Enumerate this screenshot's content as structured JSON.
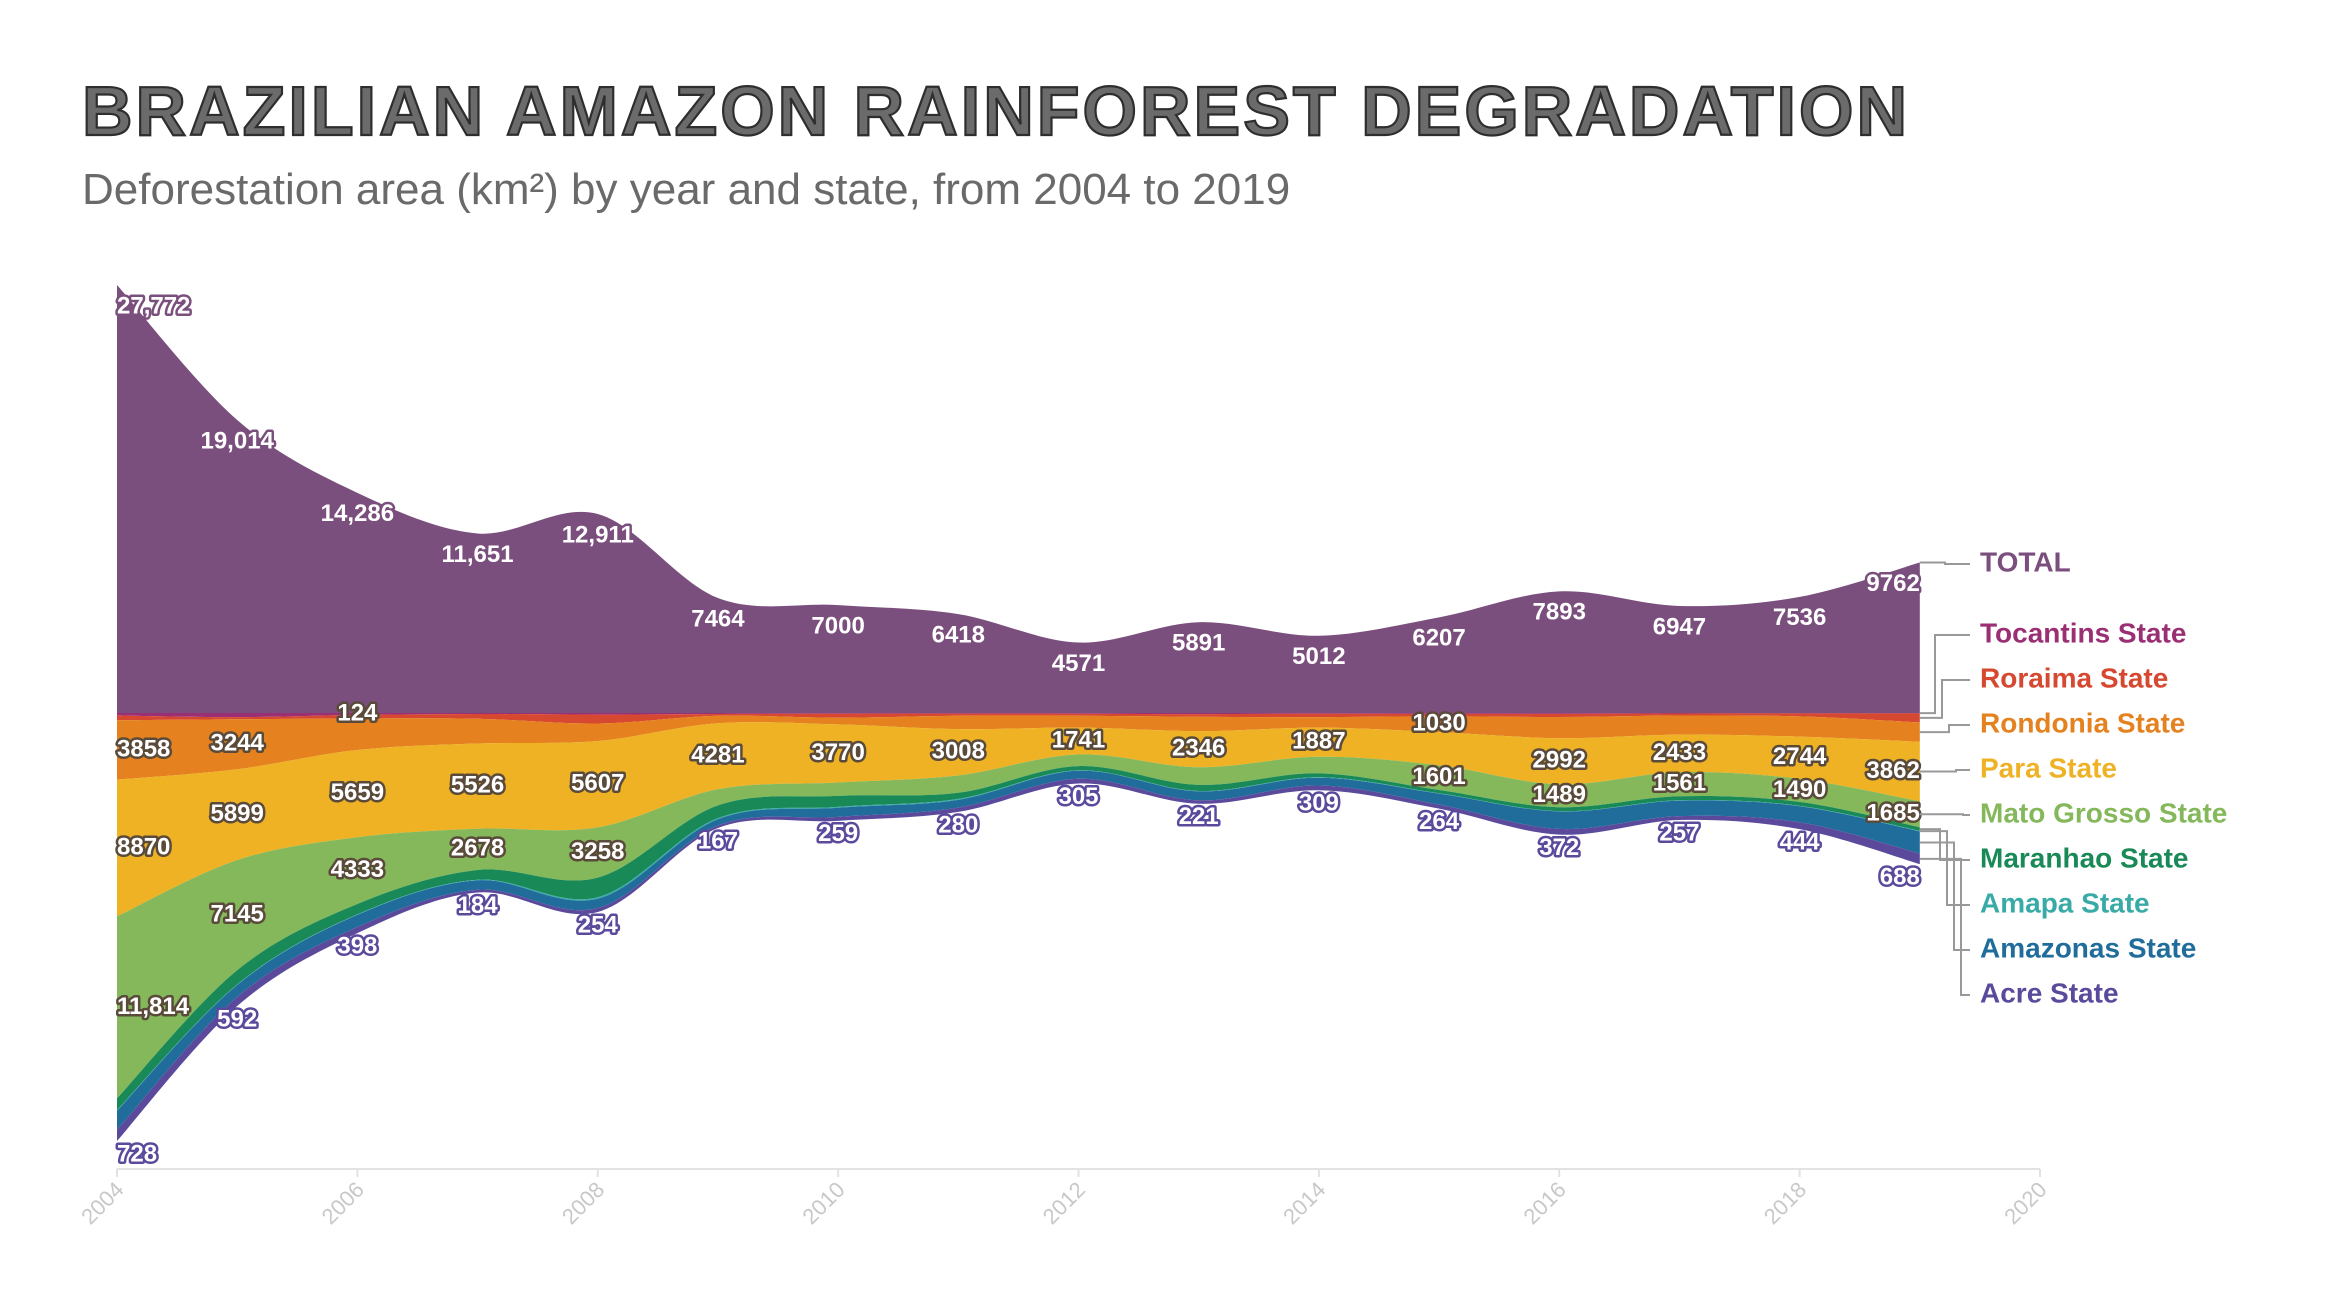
{
  "chart_data": {
    "type": "streamgraph",
    "title": "BRAZILIAN AMAZON RAINFOREST DEGRADATION",
    "subtitle": "Deforestation area (km²) by year and state, from 2004 to 2019",
    "x": [
      2004,
      2005,
      2006,
      2007,
      2008,
      2009,
      2010,
      2011,
      2012,
      2013,
      2014,
      2015,
      2016,
      2017,
      2018,
      2019
    ],
    "xlim": [
      2004,
      2020
    ],
    "xticks": [
      2004,
      2006,
      2008,
      2010,
      2012,
      2014,
      2016,
      2018,
      2020
    ],
    "total": {
      "name": "TOTAL",
      "color": "#7b4f7d",
      "values": [
        27772,
        19014,
        14286,
        11651,
        12911,
        7464,
        7000,
        6418,
        4571,
        5891,
        5012,
        6207,
        7893,
        6947,
        7536,
        9762
      ],
      "value_labels": [
        "27,772",
        "19,014",
        "14,286",
        "11,651",
        "12,911",
        "7464",
        "7000",
        "6418",
        "4571",
        "5891",
        "5012",
        "6207",
        "7893",
        "6947",
        "7536",
        "9762"
      ]
    },
    "series": [
      {
        "name": "Tocantins State",
        "color": "#9b2f74",
        "values": [
          158,
          271,
          124,
          63,
          107,
          61,
          49,
          40,
          52,
          74,
          50,
          57,
          58,
          31,
          25,
          21
        ],
        "value_labels": [
          null,
          null,
          "124",
          null,
          null,
          null,
          null,
          null,
          null,
          null,
          null,
          null,
          null,
          null,
          null,
          null
        ]
      },
      {
        "name": "Roraima State",
        "color": "#d6482f",
        "values": [
          311,
          133,
          231,
          309,
          574,
          121,
          256,
          141,
          124,
          170,
          219,
          156,
          202,
          132,
          195,
          590
        ],
        "value_labels": [
          null,
          null,
          null,
          null,
          null,
          null,
          null,
          null,
          null,
          null,
          null,
          null,
          null,
          null,
          null,
          null
        ]
      },
      {
        "name": "Rondonia State",
        "color": "#e5821f",
        "values": [
          3858,
          3244,
          2049,
          1611,
          1136,
          482,
          435,
          865,
          773,
          932,
          684,
          1030,
          1376,
          1243,
          1316,
          1257
        ],
        "value_labels": [
          "3858",
          "3244",
          null,
          null,
          null,
          null,
          null,
          null,
          null,
          null,
          null,
          "1030",
          null,
          null,
          null,
          null
        ]
      },
      {
        "name": "Para State",
        "color": "#eeb224",
        "values": [
          8870,
          5899,
          5659,
          5526,
          5607,
          4281,
          3770,
          3008,
          1741,
          2346,
          1887,
          2153,
          2992,
          2433,
          2744,
          3862
        ],
        "value_labels": [
          "8870",
          "5899",
          "5659",
          "5526",
          "5607",
          "4281",
          "3770",
          "3008",
          "1741",
          "2346",
          "1887",
          null,
          "2992",
          "2433",
          "2744",
          "3862"
        ]
      },
      {
        "name": "Mato Grosso State",
        "color": "#84b85b",
        "values": [
          11814,
          7145,
          4333,
          2678,
          3258,
          1049,
          871,
          1120,
          757,
          1139,
          1075,
          1601,
          1489,
          1561,
          1490,
          1685
        ],
        "value_labels": [
          "11,814",
          "7145",
          "4333",
          "2678",
          "3258",
          null,
          null,
          null,
          null,
          null,
          null,
          "1601",
          "1489",
          "1561",
          "1490",
          "1685"
        ]
      },
      {
        "name": "Maranhao State",
        "color": "#198a57",
        "values": [
          755,
          922,
          674,
          631,
          1271,
          828,
          712,
          396,
          269,
          403,
          257,
          209,
          258,
          265,
          253,
          237
        ],
        "value_labels": [
          null,
          null,
          null,
          null,
          null,
          null,
          null,
          null,
          null,
          null,
          null,
          null,
          null,
          null,
          null,
          null
        ]
      },
      {
        "name": "Amapa State",
        "color": "#38aba6",
        "values": [
          46,
          33,
          30,
          39,
          100,
          70,
          53,
          66,
          27,
          23,
          31,
          25,
          17,
          24,
          24,
          32
        ],
        "value_labels": [
          null,
          null,
          null,
          null,
          null,
          null,
          null,
          null,
          null,
          null,
          null,
          null,
          null,
          null,
          null,
          null
        ]
      },
      {
        "name": "Amazonas State",
        "color": "#206d9b",
        "values": [
          1232,
          775,
          788,
          610,
          604,
          405,
          595,
          502,
          523,
          583,
          500,
          712,
          1129,
          1001,
          1045,
          1434
        ],
        "value_labels": [
          null,
          null,
          null,
          null,
          null,
          null,
          null,
          null,
          null,
          null,
          null,
          null,
          null,
          null,
          null,
          null
        ]
      },
      {
        "name": "Acre State",
        "color": "#5b4a9c",
        "values": [
          728,
          592,
          398,
          184,
          254,
          167,
          259,
          280,
          305,
          221,
          309,
          264,
          372,
          257,
          444,
          688
        ],
        "value_labels": [
          "728",
          "592",
          "398",
          "184",
          "254",
          "167",
          "259",
          "280",
          "305",
          "221",
          "309",
          "264",
          "372",
          "257",
          "444",
          "688"
        ]
      }
    ]
  }
}
